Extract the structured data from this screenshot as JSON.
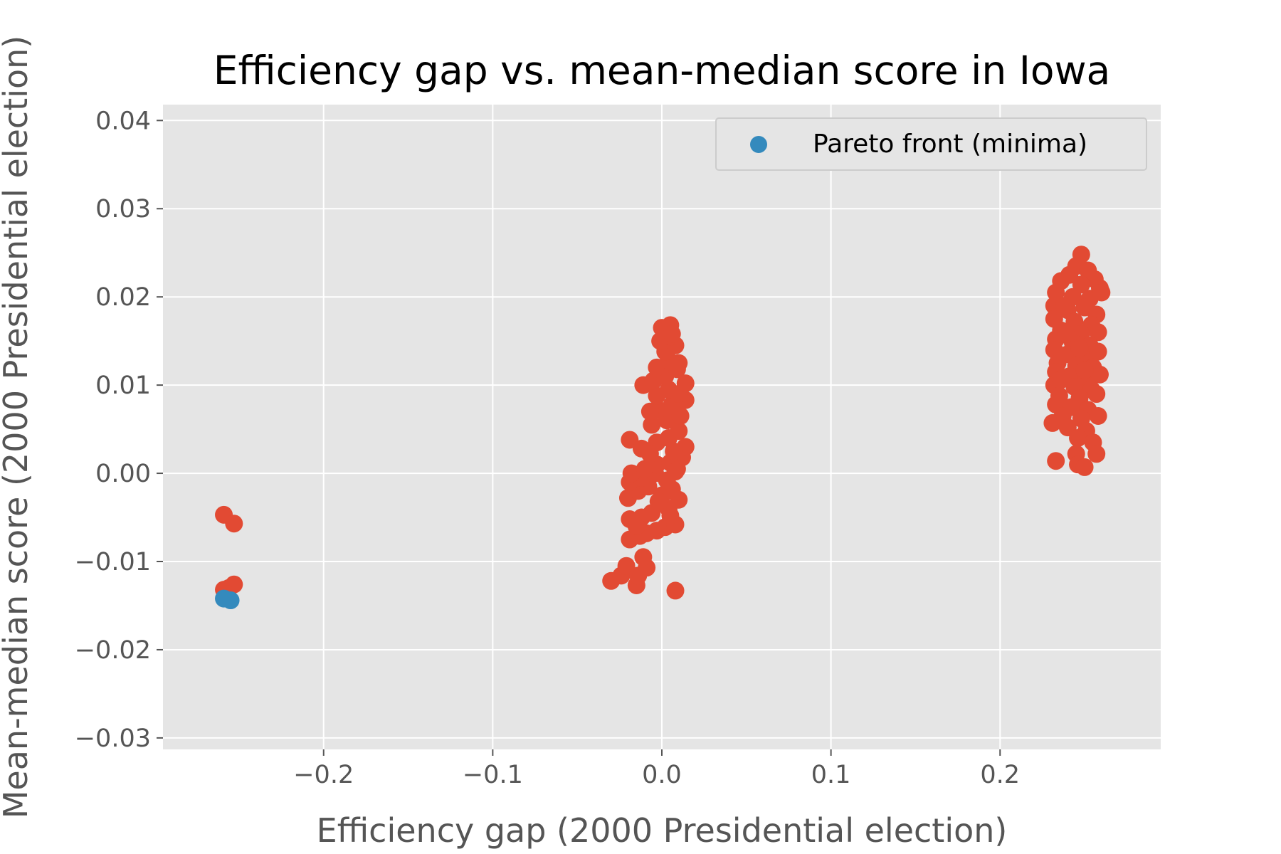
{
  "chart_data": {
    "type": "scatter",
    "title": "Efficiency gap vs. mean-median score in Iowa",
    "xlabel": "Efficiency gap (2000 Presidential election)",
    "ylabel": "Mean-median score (2000 Presidential election)",
    "xlim": [
      -0.295,
      0.295
    ],
    "ylim": [
      -0.0313,
      0.0418
    ],
    "xticks": [
      -0.2,
      -0.1,
      0.0,
      0.1,
      0.2
    ],
    "xtick_labels": [
      "−0.2",
      "−0.1",
      "0.0",
      "0.1",
      "0.2"
    ],
    "yticks": [
      0.04,
      0.03,
      0.02,
      0.01,
      0.0,
      -0.01,
      -0.02,
      -0.03
    ],
    "ytick_labels": [
      "0.04",
      "0.03",
      "0.02",
      "0.01",
      "0.00",
      "−0.01",
      "−0.02",
      "−0.03"
    ],
    "grid": true,
    "legend_position": "top-right",
    "colors": {
      "background": "#e5e5e5",
      "grid": "#ffffff",
      "plans": "#e24a33",
      "pareto": "#348abd"
    },
    "series": [
      {
        "values": [
          [
            -0.259,
            -0.0047
          ],
          [
            -0.253,
            -0.0057
          ],
          [
            -0.259,
            -0.0132
          ],
          [
            -0.256,
            -0.013
          ],
          [
            -0.253,
            -0.0126
          ],
          [
            -0.257,
            -0.0137
          ],
          [
            -0.03,
            -0.0122
          ],
          [
            -0.024,
            -0.0116
          ],
          [
            -0.021,
            -0.0105
          ],
          [
            -0.015,
            -0.0127
          ],
          [
            -0.014,
            -0.0116
          ],
          [
            -0.009,
            -0.0107
          ],
          [
            -0.011,
            -0.0095
          ],
          [
            0.008,
            -0.0133
          ],
          [
            -0.019,
            -0.0075
          ],
          [
            -0.013,
            -0.0071
          ],
          [
            -0.009,
            -0.0068
          ],
          [
            -0.003,
            -0.0065
          ],
          [
            0.002,
            -0.0061
          ],
          [
            0.008,
            -0.0058
          ],
          [
            -0.019,
            -0.0052
          ],
          [
            -0.012,
            -0.005
          ],
          [
            -0.006,
            -0.0045
          ],
          [
            0.004,
            -0.004
          ],
          [
            -0.02,
            -0.0028
          ],
          [
            -0.014,
            -0.002
          ],
          [
            -0.008,
            -0.0015
          ],
          [
            0.0,
            -0.0025
          ],
          [
            0.006,
            -0.0018
          ],
          [
            0.01,
            -0.003
          ],
          [
            -0.019,
            -0.001
          ],
          [
            -0.012,
            -0.0005
          ],
          [
            -0.004,
            0.0
          ],
          [
            0.003,
            -0.0008
          ],
          [
            0.009,
            0.0005
          ],
          [
            -0.018,
            0.0
          ],
          [
            -0.01,
            0.0005
          ],
          [
            -0.003,
            0.001
          ],
          [
            0.005,
            0.0012
          ],
          [
            0.012,
            0.0018
          ],
          [
            0.014,
            0.003
          ],
          [
            0.007,
            0.0025
          ],
          [
            -0.019,
            0.0038
          ],
          [
            -0.012,
            0.0028
          ],
          [
            -0.003,
            0.0035
          ],
          [
            0.004,
            0.004
          ],
          [
            0.01,
            0.0048
          ],
          [
            -0.006,
            0.0055
          ],
          [
            0.003,
            0.006
          ],
          [
            0.011,
            0.0065
          ],
          [
            -0.002,
            0.0072
          ],
          [
            0.006,
            0.0078
          ],
          [
            0.014,
            0.0083
          ],
          [
            -0.003,
            0.0088
          ],
          [
            0.004,
            0.0095
          ],
          [
            0.01,
            0.009
          ],
          [
            -0.011,
            0.01
          ],
          [
            -0.005,
            0.0105
          ],
          [
            0.002,
            0.011
          ],
          [
            0.009,
            0.0118
          ],
          [
            0.014,
            0.0102
          ],
          [
            -0.003,
            0.012
          ],
          [
            0.004,
            0.0128
          ],
          [
            0.01,
            0.0125
          ],
          [
            0.002,
            0.0138
          ],
          [
            0.008,
            0.0145
          ],
          [
            -0.001,
            0.015
          ],
          [
            0.005,
            0.0155
          ],
          [
            0.001,
            0.0162
          ],
          [
            0.005,
            0.0168
          ],
          [
            0.0,
            0.0165
          ],
          [
            0.006,
            0.0158
          ],
          [
            -0.007,
            0.0022
          ],
          [
            -0.002,
            -0.0032
          ],
          [
            0.005,
            -0.0048
          ],
          [
            -0.007,
            0.007
          ],
          [
            0.008,
            0.0002
          ],
          [
            -0.015,
            -0.006
          ],
          [
            0.248,
            0.0248
          ],
          [
            0.245,
            0.0235
          ],
          [
            0.252,
            0.023
          ],
          [
            0.241,
            0.0225
          ],
          [
            0.256,
            0.022
          ],
          [
            0.236,
            0.0218
          ],
          [
            0.248,
            0.0214
          ],
          [
            0.259,
            0.021
          ],
          [
            0.233,
            0.0205
          ],
          [
            0.243,
            0.02
          ],
          [
            0.253,
            0.0198
          ],
          [
            0.26,
            0.0205
          ],
          [
            0.232,
            0.019
          ],
          [
            0.24,
            0.0185
          ],
          [
            0.25,
            0.0188
          ],
          [
            0.257,
            0.018
          ],
          [
            0.232,
            0.0175
          ],
          [
            0.244,
            0.0172
          ],
          [
            0.254,
            0.0168
          ],
          [
            0.236,
            0.0162
          ],
          [
            0.248,
            0.0158
          ],
          [
            0.258,
            0.016
          ],
          [
            0.233,
            0.0152
          ],
          [
            0.243,
            0.0148
          ],
          [
            0.253,
            0.0145
          ],
          [
            0.232,
            0.014
          ],
          [
            0.24,
            0.0135
          ],
          [
            0.25,
            0.0132
          ],
          [
            0.258,
            0.0138
          ],
          [
            0.234,
            0.0125
          ],
          [
            0.245,
            0.0122
          ],
          [
            0.255,
            0.012
          ],
          [
            0.233,
            0.0115
          ],
          [
            0.241,
            0.011
          ],
          [
            0.251,
            0.0108
          ],
          [
            0.259,
            0.0112
          ],
          [
            0.232,
            0.01
          ],
          [
            0.244,
            0.0098
          ],
          [
            0.254,
            0.0095
          ],
          [
            0.235,
            0.0088
          ],
          [
            0.247,
            0.0085
          ],
          [
            0.257,
            0.009
          ],
          [
            0.233,
            0.0078
          ],
          [
            0.242,
            0.0075
          ],
          [
            0.252,
            0.0072
          ],
          [
            0.237,
            0.0065
          ],
          [
            0.248,
            0.0062
          ],
          [
            0.258,
            0.0065
          ],
          [
            0.231,
            0.0057
          ],
          [
            0.24,
            0.0052
          ],
          [
            0.251,
            0.0048
          ],
          [
            0.246,
            0.004
          ],
          [
            0.255,
            0.0035
          ],
          [
            0.257,
            0.0022
          ],
          [
            0.245,
            0.0022
          ],
          [
            0.233,
            0.0014
          ],
          [
            0.246,
            0.001
          ],
          [
            0.25,
            0.0007
          ],
          [
            0.238,
            0.019
          ],
          [
            0.247,
            0.0142
          ],
          [
            0.239,
            0.0158
          ],
          [
            0.25,
            0.0117
          ],
          [
            0.236,
            0.0106
          ]
        ]
      },
      {
        "name": "Pareto front (minima)",
        "values": [
          [
            -0.259,
            -0.0142
          ],
          [
            -0.255,
            -0.0144
          ]
        ]
      }
    ]
  }
}
